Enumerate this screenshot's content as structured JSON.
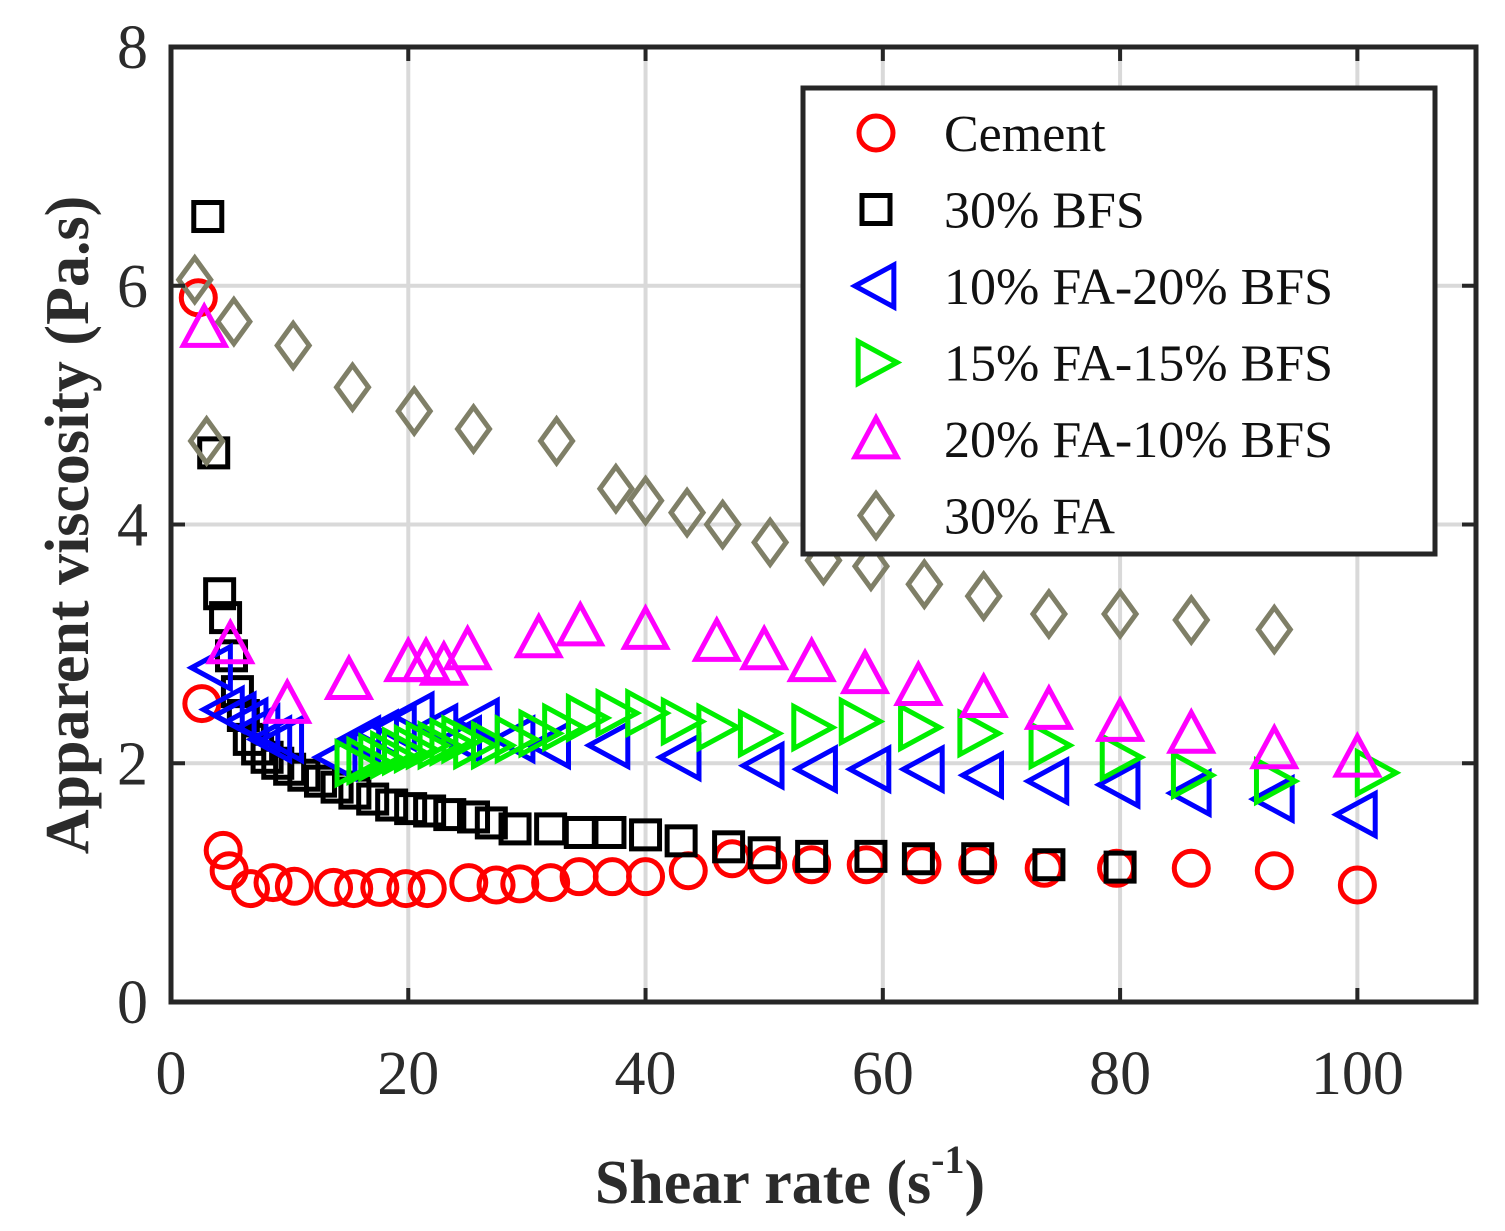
{
  "chart_data": {
    "type": "scatter",
    "title": "",
    "xlabel": "Shear rate (s",
    "xlabel_sup": "-1",
    "xlabel_close": ")",
    "ylabel": "Apparent viscosity (Pa.s)",
    "xlim": [
      0,
      110
    ],
    "ylim": [
      0,
      8
    ],
    "xticks": [
      0,
      20,
      40,
      60,
      80,
      100
    ],
    "yticks": [
      0,
      2,
      4,
      6,
      8
    ],
    "grid": true,
    "legend_position": "top-right",
    "series": [
      {
        "name": "Cement",
        "marker": "circle",
        "color": "#ff0000",
        "x": [
          2.3,
          2.6,
          4.4,
          4.9,
          6.7,
          8.6,
          10.4,
          13.7,
          15.4,
          17.6,
          19.8,
          21.6,
          25.1,
          27.4,
          29.4,
          32.0,
          34.4,
          37.2,
          40.0,
          43.6,
          47.3,
          50.3,
          54.0,
          58.6,
          63.3,
          68.0,
          73.6,
          79.7,
          86.0,
          93.0,
          100.0
        ],
        "y": [
          5.9,
          2.5,
          1.27,
          1.1,
          0.95,
          1.0,
          0.97,
          0.96,
          0.95,
          0.96,
          0.95,
          0.95,
          1.0,
          0.98,
          0.99,
          1.0,
          1.05,
          1.05,
          1.05,
          1.1,
          1.2,
          1.15,
          1.15,
          1.15,
          1.15,
          1.15,
          1.12,
          1.12,
          1.12,
          1.1,
          0.98
        ]
      },
      {
        "name": "30% BFS",
        "marker": "square",
        "color": "#000000",
        "x": [
          3.1,
          3.6,
          4.1,
          4.6,
          5.1,
          5.6,
          6.1,
          6.6,
          7.3,
          8.1,
          9.0,
          10.0,
          11.2,
          12.6,
          14.0,
          15.5,
          17.0,
          18.6,
          20.2,
          21.8,
          23.5,
          25.5,
          27.0,
          29.0,
          32.0,
          34.5,
          37.0,
          40.0,
          43.0,
          47.0,
          50.0,
          54.0,
          59.0,
          63.0,
          68.0,
          74.0,
          80.0
        ],
        "y": [
          6.58,
          4.6,
          3.42,
          3.22,
          2.9,
          2.6,
          2.4,
          2.2,
          2.12,
          2.05,
          2.0,
          1.95,
          1.9,
          1.85,
          1.8,
          1.75,
          1.7,
          1.65,
          1.62,
          1.6,
          1.57,
          1.55,
          1.5,
          1.45,
          1.45,
          1.42,
          1.42,
          1.4,
          1.35,
          1.3,
          1.25,
          1.22,
          1.22,
          1.2,
          1.2,
          1.15,
          1.13
        ]
      },
      {
        "name": "10% FA-20% BFS",
        "marker": "triangle-left",
        "color": "#0000ff",
        "x": [
          3.5,
          4.5,
          5.5,
          6.5,
          7.5,
          8.5,
          9.5,
          14.0,
          16.0,
          17.5,
          19.0,
          20.5,
          22.5,
          24.5,
          26.0,
          29.0,
          32.0,
          37.0,
          43.0,
          50.0,
          54.5,
          59.0,
          63.5,
          68.5,
          74.0,
          80.0,
          86.0,
          93.0,
          100.0
        ],
        "y": [
          2.8,
          2.45,
          2.4,
          2.35,
          2.3,
          2.2,
          2.2,
          2.05,
          2.2,
          2.25,
          2.3,
          2.4,
          2.3,
          2.2,
          2.35,
          2.2,
          2.15,
          2.15,
          2.05,
          1.98,
          1.95,
          1.95,
          1.95,
          1.9,
          1.85,
          1.82,
          1.75,
          1.7,
          1.57
        ]
      },
      {
        "name": "15% FA-15% BFS",
        "marker": "triangle-right",
        "color": "#00ee00",
        "x": [
          15.5,
          16.5,
          17.5,
          18.5,
          19.5,
          20.5,
          21.5,
          22.5,
          23.5,
          24.5,
          25.5,
          27.0,
          29.0,
          31.0,
          33.0,
          35.0,
          37.5,
          40.0,
          43.0,
          46.0,
          49.5,
          54.0,
          58.0,
          63.0,
          68.0,
          74.0,
          80.0,
          86.0,
          93.0,
          101.5
        ],
        "y": [
          2.0,
          2.02,
          2.05,
          2.07,
          2.1,
          2.12,
          2.15,
          2.15,
          2.18,
          2.2,
          2.15,
          2.15,
          2.2,
          2.25,
          2.3,
          2.38,
          2.42,
          2.42,
          2.35,
          2.3,
          2.25,
          2.3,
          2.35,
          2.3,
          2.25,
          2.15,
          2.05,
          1.9,
          1.85,
          1.92
        ]
      },
      {
        "name": "20% FA-10% BFS",
        "marker": "triangle-up",
        "color": "#ff00ff",
        "x": [
          2.8,
          5.0,
          9.8,
          15.0,
          20.0,
          21.5,
          23.0,
          25.0,
          31.0,
          34.5,
          40.0,
          46.0,
          50.0,
          54.0,
          58.5,
          63.0,
          68.5,
          74.0,
          80.0,
          86.0,
          93.0,
          100.0
        ],
        "y": [
          5.65,
          3.0,
          2.5,
          2.7,
          2.85,
          2.85,
          2.82,
          2.95,
          3.05,
          3.15,
          3.12,
          3.02,
          2.95,
          2.85,
          2.75,
          2.65,
          2.55,
          2.45,
          2.35,
          2.25,
          2.12,
          2.05
        ]
      },
      {
        "name": "30% FA",
        "marker": "diamond",
        "color": "#7f7f67",
        "x": [
          2.0,
          3.0,
          5.3,
          10.3,
          15.3,
          20.5,
          25.5,
          32.5,
          37.5,
          40.0,
          43.5,
          46.5,
          50.5,
          55.0,
          59.0,
          63.5,
          68.5,
          74.0,
          80.0,
          86.0,
          93.0
        ],
        "y": [
          6.05,
          4.7,
          5.7,
          5.5,
          5.15,
          4.95,
          4.8,
          4.7,
          4.3,
          4.2,
          4.1,
          4.0,
          3.85,
          3.7,
          3.65,
          3.5,
          3.4,
          3.25,
          3.25,
          3.2,
          3.12
        ]
      }
    ]
  }
}
